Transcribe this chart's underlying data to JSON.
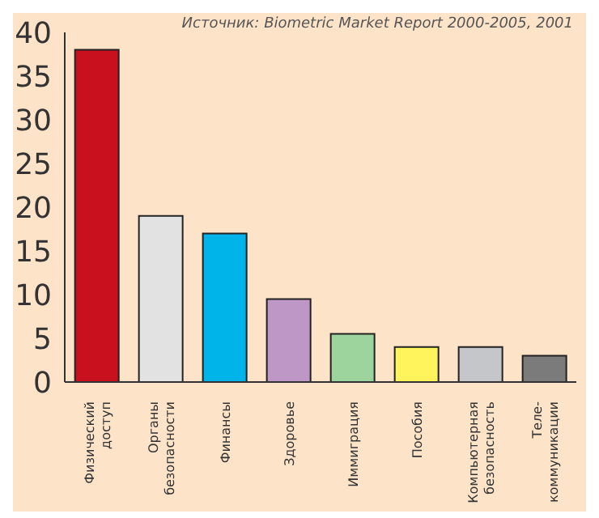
{
  "chart_data": {
    "type": "bar",
    "categories": [
      "Физический\nдоступ",
      "Органы\nбезопасности",
      "Финансы",
      "Здоровье",
      "Иммиграция",
      "Пособия",
      "Компьютерная\nбезопасность",
      "Теле-\nкоммуникации"
    ],
    "values": [
      38,
      19,
      17,
      9.5,
      5.5,
      4,
      4,
      3
    ],
    "colors": [
      "#c8101e",
      "#e2e2e2",
      "#00b4ea",
      "#bf97c6",
      "#9dd39c",
      "#fff45c",
      "#c5c6ca",
      "#7b7b7b"
    ],
    "ylim": [
      0,
      40
    ],
    "yticks": [
      0,
      5,
      10,
      15,
      20,
      25,
      30,
      35,
      40
    ],
    "grid": false,
    "legend": false,
    "annotations": [
      "Источник: Biometric Market Report 2000-2005, 2001"
    ]
  }
}
